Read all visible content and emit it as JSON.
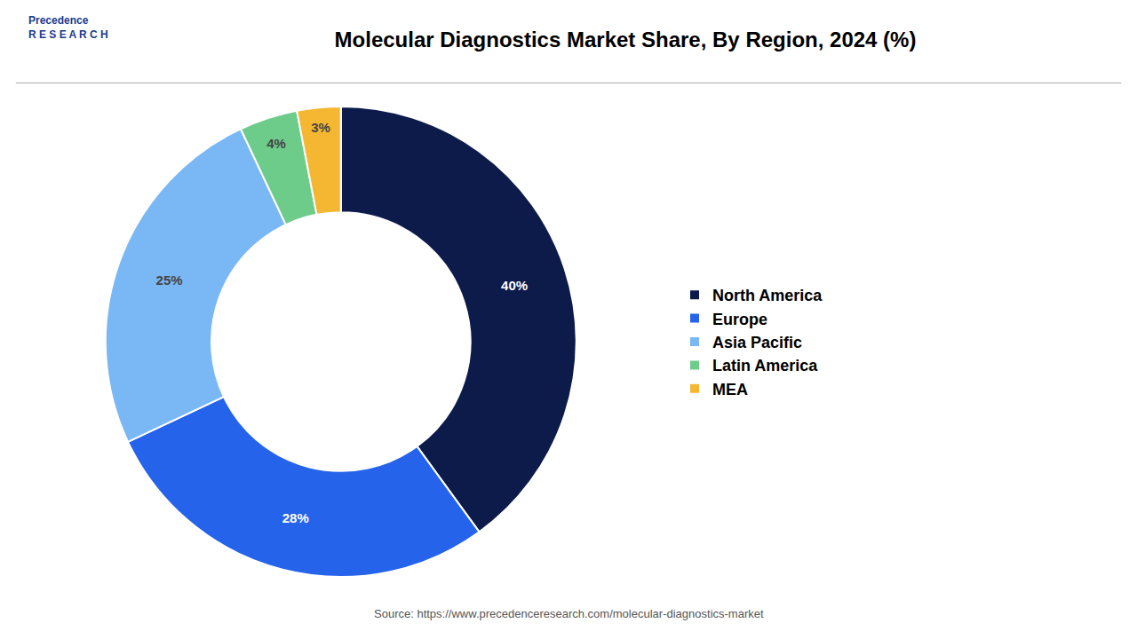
{
  "chart_data": {
    "type": "pie",
    "title": "Molecular Diagnostics Market Share, By Region, 2024 (%)",
    "categories": [
      "North America",
      "Europe",
      "Asia Pacific",
      "Latin America",
      "MEA"
    ],
    "values": [
      40,
      28,
      25,
      4,
      3
    ],
    "value_labels": [
      "40%",
      "28%",
      "25%",
      "4%",
      "3%"
    ],
    "colors": [
      "#0d1b4b",
      "#2563eb",
      "#7ab8f5",
      "#6dcc8a",
      "#f5b731"
    ],
    "data_labels": true,
    "legend": "right",
    "annotations": [
      "Source: https://www.precedenceresearch.com/molecular-diagnostics-market",
      "Precedence",
      "R E S E A R C H"
    ]
  }
}
